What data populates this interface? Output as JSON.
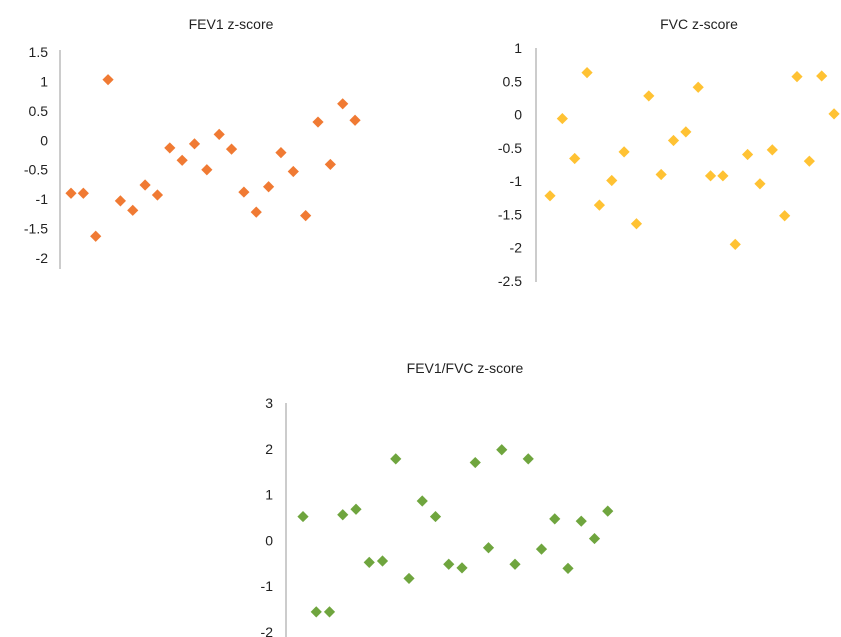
{
  "chart_data": [
    {
      "type": "scatter",
      "title": "FEV1 z-score",
      "ylim": [
        -2,
        1.5
      ],
      "yticks": [
        "1.5",
        "1",
        "0.5",
        "0",
        "-0.5",
        "-1",
        "-1.5",
        "-2"
      ],
      "grid": false,
      "color": "#f07a33",
      "marker": "diamond",
      "series": [
        {
          "values": [
            -0.9,
            -0.9,
            -1.63,
            1.03,
            -1.03,
            -1.19,
            -0.76,
            -0.93,
            -0.13,
            -0.34,
            -0.06,
            -0.5,
            0.1,
            -0.15,
            -0.88,
            -1.22,
            -0.79,
            -0.21,
            -0.53,
            -1.28,
            0.31,
            -0.41,
            0.62,
            0.34
          ]
        }
      ]
    },
    {
      "type": "scatter",
      "title": "FVC z-score",
      "ylim": [
        -2.5,
        1
      ],
      "yticks": [
        "1",
        "0.5",
        "0",
        "-0.5",
        "-1",
        "-1.5",
        "-2",
        "-2.5"
      ],
      "grid": false,
      "color": "#ffc233",
      "marker": "diamond",
      "series": [
        {
          "values": [
            -1.22,
            -0.06,
            -0.66,
            0.63,
            -1.36,
            -0.99,
            -0.56,
            -1.64,
            0.28,
            -0.9,
            -0.39,
            -0.26,
            0.41,
            -0.92,
            -0.92,
            -1.95,
            -0.6,
            -1.04,
            -0.53,
            -1.52,
            0.57,
            -0.7,
            0.58,
            0.01
          ]
        }
      ]
    },
    {
      "type": "scatter",
      "title": "FEV1/FVC z-score",
      "ylim": [
        -2,
        3
      ],
      "yticks": [
        "3",
        "2",
        "1",
        "0",
        "-1",
        "-2"
      ],
      "grid": false,
      "color": "#6fa53e",
      "marker": "diamond",
      "series": [
        {
          "values": [
            0.52,
            -1.56,
            -1.56,
            0.56,
            0.68,
            -0.48,
            -0.45,
            1.78,
            -0.83,
            0.86,
            0.52,
            -0.52,
            -0.6,
            1.7,
            -0.16,
            1.98,
            -0.52,
            1.78,
            -0.19,
            0.47,
            -0.61,
            0.42,
            0.04,
            0.64
          ]
        }
      ]
    }
  ]
}
